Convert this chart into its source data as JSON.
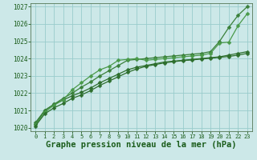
{
  "background_color": "#cce8e8",
  "grid_color": "#99cccc",
  "text_color": "#1a5c1a",
  "xlabel": "Graphe pression niveau de la mer (hPa)",
  "xlabel_fontsize": 7.5,
  "xlim": [
    -0.5,
    23.5
  ],
  "ylim": [
    1019.8,
    1027.2
  ],
  "yticks": [
    1020,
    1021,
    1022,
    1023,
    1024,
    1025,
    1026,
    1027
  ],
  "xticks": [
    0,
    1,
    2,
    3,
    4,
    5,
    6,
    7,
    8,
    9,
    10,
    11,
    12,
    13,
    14,
    15,
    16,
    17,
    18,
    19,
    20,
    21,
    22,
    23
  ],
  "series": [
    {
      "x": [
        0,
        1,
        2,
        3,
        4,
        5,
        6,
        7,
        8,
        9,
        10,
        11,
        12,
        13,
        14,
        15,
        16,
        17,
        18,
        19,
        20,
        21,
        22,
        23
      ],
      "y": [
        1020.2,
        1021.0,
        1021.35,
        1021.6,
        1021.85,
        1022.05,
        1022.3,
        1022.6,
        1022.85,
        1023.1,
        1023.35,
        1023.5,
        1023.6,
        1023.7,
        1023.8,
        1023.85,
        1023.9,
        1023.95,
        1024.0,
        1024.05,
        1024.1,
        1024.2,
        1024.3,
        1024.4
      ],
      "marker": "D",
      "markersize": 2.5,
      "linewidth": 0.9,
      "color": "#2d6e2d"
    },
    {
      "x": [
        0,
        1,
        2,
        3,
        4,
        5,
        6,
        7,
        8,
        9,
        10,
        11,
        12,
        13,
        14,
        15,
        16,
        17,
        18,
        19,
        20,
        21,
        22,
        23
      ],
      "y": [
        1020.3,
        1021.0,
        1021.35,
        1021.7,
        1022.0,
        1022.35,
        1022.65,
        1023.0,
        1023.3,
        1023.6,
        1023.9,
        1023.95,
        1024.0,
        1024.05,
        1024.1,
        1024.15,
        1024.2,
        1024.25,
        1024.3,
        1024.4,
        1025.0,
        1025.8,
        1026.5,
        1027.0
      ],
      "marker": "D",
      "markersize": 2.5,
      "linewidth": 0.9,
      "color": "#3a803a"
    },
    {
      "x": [
        0,
        1,
        2,
        3,
        4,
        5,
        6,
        7,
        8,
        9,
        10,
        11,
        12,
        13,
        14,
        15,
        16,
        17,
        18,
        19,
        20,
        21,
        22,
        23
      ],
      "y": [
        1020.15,
        1020.9,
        1021.3,
        1021.6,
        1022.2,
        1022.6,
        1023.0,
        1023.35,
        1023.55,
        1023.9,
        1023.95,
        1024.0,
        1023.9,
        1023.95,
        1024.0,
        1024.05,
        1024.1,
        1024.15,
        1024.2,
        1024.3,
        1024.9,
        1024.95,
        1025.9,
        1026.6
      ],
      "marker": "D",
      "markersize": 2.5,
      "linewidth": 0.9,
      "color": "#4a9a4a"
    },
    {
      "x": [
        0,
        1,
        2,
        3,
        4,
        5,
        6,
        7,
        8,
        9,
        10,
        11,
        12,
        13,
        14,
        15,
        16,
        17,
        18,
        19,
        20,
        21,
        22,
        23
      ],
      "y": [
        1020.1,
        1020.8,
        1021.15,
        1021.4,
        1021.7,
        1021.9,
        1022.15,
        1022.45,
        1022.7,
        1022.95,
        1023.2,
        1023.4,
        1023.55,
        1023.65,
        1023.75,
        1023.82,
        1023.88,
        1023.92,
        1023.97,
        1024.02,
        1024.07,
        1024.12,
        1024.2,
        1024.3
      ],
      "marker": "D",
      "markersize": 2.5,
      "linewidth": 0.9,
      "color": "#2d6e2d"
    }
  ]
}
